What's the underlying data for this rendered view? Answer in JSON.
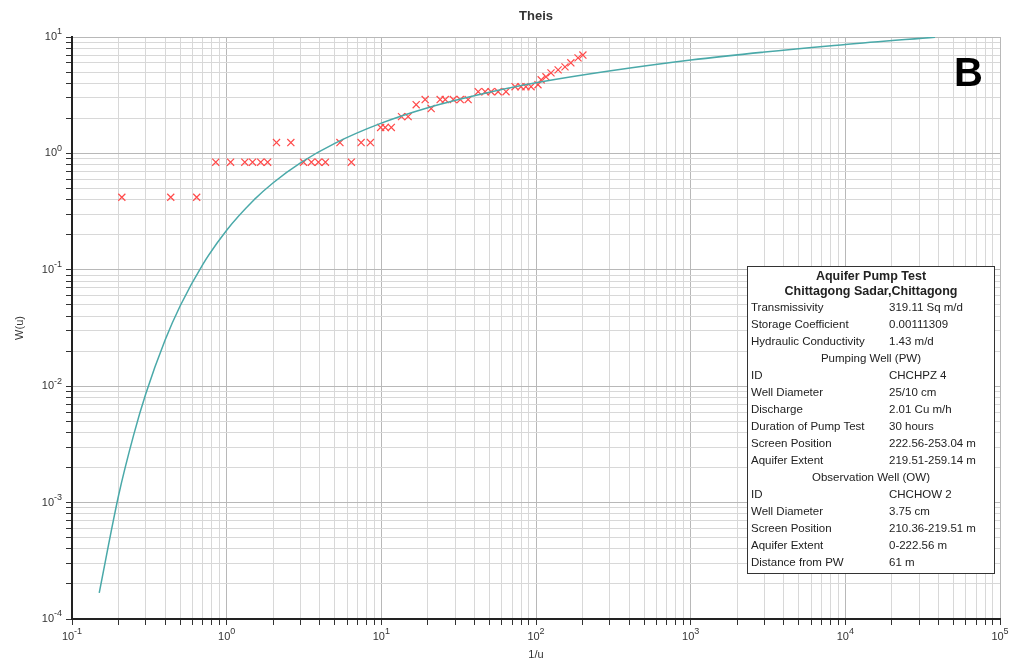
{
  "chart_data": {
    "type": "line",
    "title": "Theis",
    "xlabel": "1/u",
    "ylabel": "W(u)",
    "log": "xy",
    "grid": true,
    "legend": false,
    "xlim": [
      0.1,
      100000
    ],
    "ylim": [
      0.0001,
      10
    ],
    "xticks": [
      {
        "value": 0.1,
        "label": "10$^{-1}$"
      },
      {
        "value": 0.2,
        "label": null
      },
      {
        "value": 0.3,
        "label": null
      },
      {
        "value": 0.4,
        "label": null
      },
      {
        "value": 0.5,
        "label": null
      },
      {
        "value": 0.6,
        "label": null
      },
      {
        "value": 0.7,
        "label": null
      },
      {
        "value": 0.8,
        "label": null
      },
      {
        "value": 0.9,
        "label": null
      },
      {
        "value": 1,
        "label": "10$^{0}$"
      },
      {
        "value": 2,
        "label": null
      },
      {
        "value": 3,
        "label": null
      },
      {
        "value": 4,
        "label": null
      },
      {
        "value": 5,
        "label": null
      },
      {
        "value": 6,
        "label": null
      },
      {
        "value": 7,
        "label": null
      },
      {
        "value": 8,
        "label": null
      },
      {
        "value": 9,
        "label": null
      },
      {
        "value": 10,
        "label": "10$^{1}$"
      },
      {
        "value": 20,
        "label": null
      },
      {
        "value": 30,
        "label": null
      },
      {
        "value": 40,
        "label": null
      },
      {
        "value": 50,
        "label": null
      },
      {
        "value": 60,
        "label": null
      },
      {
        "value": 70,
        "label": null
      },
      {
        "value": 80,
        "label": null
      },
      {
        "value": 90,
        "label": null
      },
      {
        "value": 100,
        "label": "10$^{2}$"
      },
      {
        "value": 200,
        "label": null
      },
      {
        "value": 300,
        "label": null
      },
      {
        "value": 400,
        "label": null
      },
      {
        "value": 500,
        "label": null
      },
      {
        "value": 600,
        "label": null
      },
      {
        "value": 700,
        "label": null
      },
      {
        "value": 800,
        "label": null
      },
      {
        "value": 900,
        "label": null
      },
      {
        "value": 1000,
        "label": "10$^{3}$"
      },
      {
        "value": 2000,
        "label": null
      },
      {
        "value": 3000,
        "label": null
      },
      {
        "value": 4000,
        "label": null
      },
      {
        "value": 5000,
        "label": null
      },
      {
        "value": 6000,
        "label": null
      },
      {
        "value": 7000,
        "label": null
      },
      {
        "value": 8000,
        "label": null
      },
      {
        "value": 9000,
        "label": null
      },
      {
        "value": 10000,
        "label": "10$^{4}$"
      },
      {
        "value": 20000,
        "label": null
      },
      {
        "value": 30000,
        "label": null
      },
      {
        "value": 40000,
        "label": null
      },
      {
        "value": 50000,
        "label": null
      },
      {
        "value": 60000,
        "label": null
      },
      {
        "value": 70000,
        "label": null
      },
      {
        "value": 80000,
        "label": null
      },
      {
        "value": 90000,
        "label": null
      },
      {
        "value": 100000,
        "label": "10$^{5}$"
      }
    ],
    "yticks": [
      {
        "value": 0.0001,
        "label": "10$^{-4}$"
      },
      {
        "value": 0.0002,
        "label": null
      },
      {
        "value": 0.0003,
        "label": null
      },
      {
        "value": 0.0004,
        "label": null
      },
      {
        "value": 0.0005,
        "label": null
      },
      {
        "value": 0.0006,
        "label": null
      },
      {
        "value": 0.0007,
        "label": null
      },
      {
        "value": 0.0008,
        "label": null
      },
      {
        "value": 0.0009,
        "label": null
      },
      {
        "value": 0.001,
        "label": "10$^{-3}$"
      },
      {
        "value": 0.002,
        "label": null
      },
      {
        "value": 0.003,
        "label": null
      },
      {
        "value": 0.004,
        "label": null
      },
      {
        "value": 0.005,
        "label": null
      },
      {
        "value": 0.006,
        "label": null
      },
      {
        "value": 0.007,
        "label": null
      },
      {
        "value": 0.008,
        "label": null
      },
      {
        "value": 0.009,
        "label": null
      },
      {
        "value": 0.01,
        "label": "10$^{-2}$"
      },
      {
        "value": 0.02,
        "label": null
      },
      {
        "value": 0.03,
        "label": null
      },
      {
        "value": 0.04,
        "label": null
      },
      {
        "value": 0.05,
        "label": null
      },
      {
        "value": 0.06,
        "label": null
      },
      {
        "value": 0.07,
        "label": null
      },
      {
        "value": 0.08,
        "label": null
      },
      {
        "value": 0.09,
        "label": null
      },
      {
        "value": 0.1,
        "label": "10$^{-1}$"
      },
      {
        "value": 0.2,
        "label": null
      },
      {
        "value": 0.3,
        "label": null
      },
      {
        "value": 0.4,
        "label": null
      },
      {
        "value": 0.5,
        "label": null
      },
      {
        "value": 0.6,
        "label": null
      },
      {
        "value": 0.7,
        "label": null
      },
      {
        "value": 0.8,
        "label": null
      },
      {
        "value": 0.9,
        "label": null
      },
      {
        "value": 1,
        "label": "10$^{0}$"
      },
      {
        "value": 2,
        "label": null
      },
      {
        "value": 3,
        "label": null
      },
      {
        "value": 4,
        "label": null
      },
      {
        "value": 5,
        "label": null
      },
      {
        "value": 6,
        "label": null
      },
      {
        "value": 7,
        "label": null
      },
      {
        "value": 8,
        "label": null
      },
      {
        "value": 9,
        "label": null
      },
      {
        "value": 10,
        "label": "10$^{1}$"
      }
    ],
    "series": [
      {
        "type": "line",
        "color": "#4aa9a9",
        "marker": "none",
        "x": [
          0.15,
          0.2,
          0.25,
          0.3,
          0.4,
          0.5,
          0.7,
          1,
          1.5,
          2,
          3,
          5,
          10,
          20,
          50,
          100,
          1000,
          10000,
          38000
        ],
        "values": [
          0.000168,
          0.00115,
          0.00378,
          0.0086,
          0.0249,
          0.0489,
          0.111,
          0.219,
          0.398,
          0.56,
          0.83,
          1.22,
          1.82,
          2.47,
          3.35,
          4.04,
          6.33,
          8.63,
          9.97
        ]
      },
      {
        "type": "scatter",
        "color": "#ff4a4a",
        "marker": "cross",
        "x": [
          0.21,
          0.435,
          0.64,
          0.85,
          1.06,
          1.31,
          1.47,
          1.66,
          1.84,
          2.1,
          2.6,
          3.14,
          3.53,
          3.92,
          4.35,
          5.4,
          6.4,
          7.4,
          8.5,
          9.9,
          10.6,
          11.6,
          13.5,
          14.9,
          16.8,
          19.2,
          21,
          24,
          25.9,
          29.2,
          32.4,
          36.4,
          42.3,
          46.9,
          51.3,
          56.9,
          64,
          73.2,
          80,
          86,
          92.9,
          103,
          108,
          116,
          125,
          139,
          154,
          168,
          187,
          201
        ],
        "values": [
          0.42,
          0.42,
          0.42,
          0.84,
          0.84,
          0.84,
          0.84,
          0.84,
          0.84,
          1.24,
          1.24,
          0.84,
          0.84,
          0.84,
          0.84,
          1.24,
          0.84,
          1.24,
          1.24,
          1.67,
          1.67,
          1.67,
          2.07,
          2.07,
          2.62,
          2.9,
          2.43,
          2.9,
          2.9,
          2.9,
          2.9,
          2.9,
          3.39,
          3.39,
          3.39,
          3.39,
          3.39,
          3.74,
          3.74,
          3.74,
          3.74,
          3.89,
          4.29,
          4.55,
          4.92,
          5.22,
          5.54,
          6.0,
          6.62,
          7.0
        ]
      }
    ],
    "annotations": [
      "B",
      "Aquifer Pump Test",
      "Chittagong Sadar,Chittagong",
      "Transmissivity\t319.11 Sq m/d",
      "Storage Coefficient\t0.00111309",
      "Hydraulic Conductivity\t1.43 m/d",
      "Pumping Well (PW)",
      "ID\tCHCHPZ 4",
      "Well Diameter\t25/10 cm",
      "Discharge\t2.01 Cu m/h",
      "Duration of Pump Test\t30 hours",
      "Screen Position\t222.56-253.04 m",
      "Aquifer Extent\t219.51-259.14 m",
      "Observation Well (OW)",
      "ID\tCHCHOW 2",
      "Well Diameter\t3.75 cm",
      "Screen Position\t210.36-219.51 m",
      "Aquifer Extent\t0-222.56 m",
      "Distance from PW\t61 m"
    ]
  }
}
